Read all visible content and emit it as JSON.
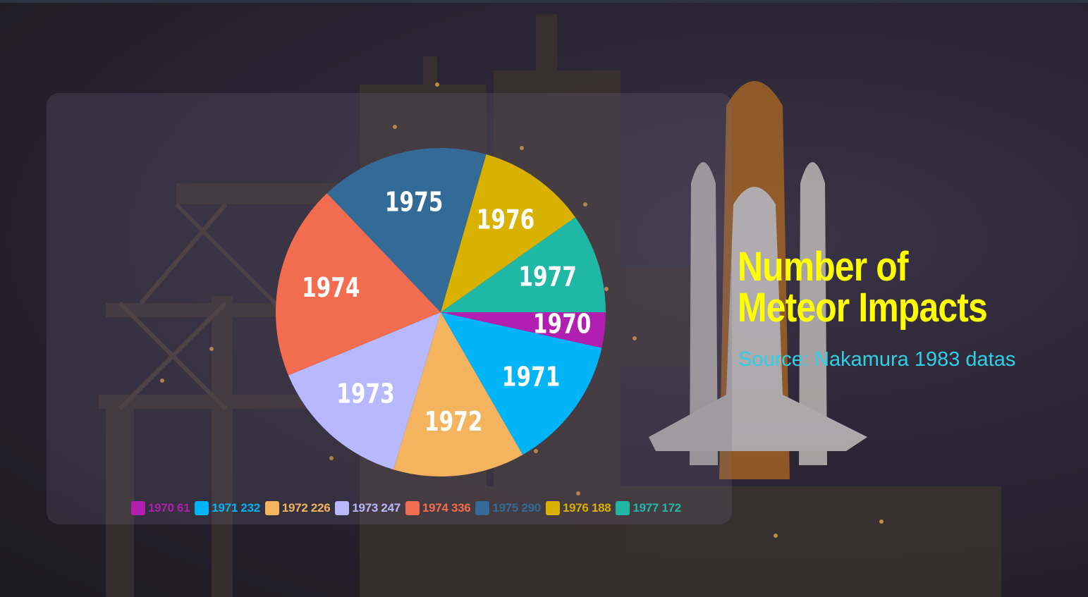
{
  "chart_data": {
    "type": "pie",
    "title": "Number of Meteor Impacts",
    "subtitle": "Source: Nakamura 1983 datas",
    "categories": [
      "1970",
      "1971",
      "1972",
      "1973",
      "1974",
      "1975",
      "1976",
      "1977"
    ],
    "values": [
      61,
      232,
      226,
      247,
      336,
      290,
      188,
      172
    ],
    "colors": [
      "#b01fb0",
      "#00b4f7",
      "#f4b35e",
      "#b8b8ff",
      "#f26d50",
      "#336b96",
      "#d9b100",
      "#1fb8a4"
    ],
    "legend_labels": [
      "1970 61",
      "1971 232",
      "1972 226",
      "1973 247",
      "1974 336",
      "1975 290",
      "1976 188",
      "1977 172"
    ],
    "legend_position": "bottom"
  }
}
